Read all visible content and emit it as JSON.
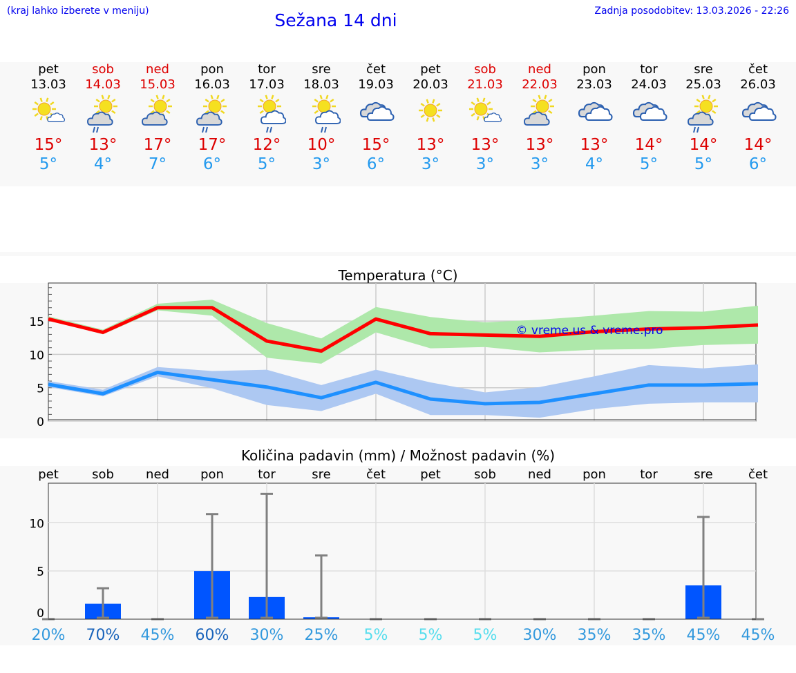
{
  "header": {
    "hint": "(kraj lahko izberete v meniju)",
    "title": "Sežana 14 dni",
    "updated": "Zadnja posodobitev: 13.03.2026 - 22:26"
  },
  "days": [
    {
      "name": "pet",
      "date": "13.03",
      "weekend": false,
      "icon": "sun-small-cloud",
      "max": "15°",
      "min": "5°"
    },
    {
      "name": "sob",
      "date": "14.03",
      "weekend": true,
      "icon": "sun-grey-cloud-rain",
      "max": "13°",
      "min": "4°"
    },
    {
      "name": "ned",
      "date": "15.03",
      "weekend": true,
      "icon": "sun-grey-cloud",
      "max": "17°",
      "min": "7°"
    },
    {
      "name": "pon",
      "date": "16.03",
      "weekend": false,
      "icon": "sun-grey-cloud-rain",
      "max": "17°",
      "min": "6°"
    },
    {
      "name": "tor",
      "date": "17.03",
      "weekend": false,
      "icon": "sun-white-cloud-rain",
      "max": "12°",
      "min": "5°"
    },
    {
      "name": "sre",
      "date": "18.03",
      "weekend": false,
      "icon": "sun-white-cloud-rain",
      "max": "10°",
      "min": "3°"
    },
    {
      "name": "čet",
      "date": "19.03",
      "weekend": false,
      "icon": "clouds",
      "max": "15°",
      "min": "6°"
    },
    {
      "name": "pet",
      "date": "20.03",
      "weekend": false,
      "icon": "sun",
      "max": "13°",
      "min": "3°"
    },
    {
      "name": "sob",
      "date": "21.03",
      "weekend": true,
      "icon": "sun-small-cloud",
      "max": "13°",
      "min": "3°"
    },
    {
      "name": "ned",
      "date": "22.03",
      "weekend": true,
      "icon": "sun-grey-cloud",
      "max": "13°",
      "min": "3°"
    },
    {
      "name": "pon",
      "date": "23.03",
      "weekend": false,
      "icon": "clouds",
      "max": "13°",
      "min": "4°"
    },
    {
      "name": "tor",
      "date": "24.03",
      "weekend": false,
      "icon": "clouds",
      "max": "14°",
      "min": "5°"
    },
    {
      "name": "sre",
      "date": "25.03",
      "weekend": false,
      "icon": "sun-grey-cloud-rain",
      "max": "14°",
      "min": "5°"
    },
    {
      "name": "čet",
      "date": "26.03",
      "weekend": false,
      "icon": "clouds",
      "max": "14°",
      "min": "6°"
    }
  ],
  "chart_data": [
    {
      "type": "line",
      "title": "Temperatura (°C)",
      "ylim": [
        0,
        20.7
      ],
      "yticks": [
        "0",
        "5",
        "10",
        "15"
      ],
      "watermark": "© vreme.us & vreme.pro",
      "series": [
        {
          "name": "max",
          "color": "#ff0000",
          "values": [
            15.3,
            13.3,
            17,
            17,
            12,
            10.5,
            15.3,
            13.1,
            12.9,
            12.7,
            13.4,
            13.8,
            14,
            14.4
          ],
          "band_low": [
            15.3,
            13,
            16.6,
            15.8,
            9.5,
            8.6,
            13.3,
            10.9,
            11.1,
            10.3,
            10.7,
            10.8,
            11.4,
            11.6
          ],
          "band_high": [
            15.7,
            13.7,
            17.6,
            18.2,
            14.7,
            12.4,
            17.1,
            15.6,
            14.8,
            15.2,
            15.8,
            16.5,
            16.4,
            17.3
          ],
          "band_color": "#aee8aa"
        },
        {
          "name": "min",
          "color": "#1e90ff",
          "values": [
            5.5,
            4.1,
            7.3,
            6.2,
            5.1,
            3.5,
            5.8,
            3.3,
            2.6,
            2.8,
            4.1,
            5.4,
            5.4,
            5.6
          ],
          "band_low": [
            5.1,
            3.7,
            6.7,
            4.9,
            2.4,
            1.5,
            4.1,
            0.9,
            0.9,
            0.5,
            1.8,
            2.6,
            2.8,
            2.8
          ],
          "band_high": [
            6,
            4.7,
            8.1,
            7.5,
            7.7,
            5.4,
            7.7,
            5.8,
            4.3,
            5.1,
            6.7,
            8.4,
            7.9,
            8.5
          ],
          "band_color": "#adc8f2"
        }
      ]
    },
    {
      "type": "bar",
      "title": "Količina padavin (mm) / Možnost padavin (%)",
      "ylim": [
        0,
        14.1
      ],
      "yticks": [
        "0",
        "5",
        "10"
      ],
      "categories": [
        "pet",
        "sob",
        "ned",
        "pon",
        "tor",
        "sre",
        "čet",
        "pet",
        "sob",
        "ned",
        "pon",
        "tor",
        "sre",
        "čet"
      ],
      "values": [
        0,
        1.6,
        0,
        5.0,
        2.3,
        0.2,
        0,
        0,
        0,
        0,
        0,
        0,
        3.5,
        0
      ],
      "err_max": [
        0,
        3.2,
        0,
        10.9,
        13.0,
        6.6,
        0,
        0,
        0,
        0,
        0,
        0,
        10.6,
        0
      ],
      "probability": [
        "20%",
        "70%",
        "45%",
        "60%",
        "30%",
        "25%",
        "5%",
        "5%",
        "5%",
        "30%",
        "35%",
        "35%",
        "45%",
        "45%"
      ],
      "prob_values": [
        20,
        70,
        45,
        60,
        30,
        25,
        5,
        5,
        5,
        30,
        35,
        35,
        45,
        45
      ],
      "bar_color": "#0055ff"
    }
  ]
}
